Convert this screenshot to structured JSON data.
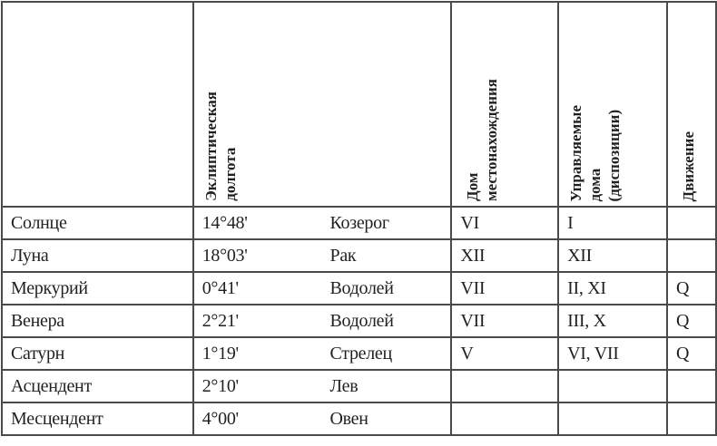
{
  "header": {
    "longitude": [
      "Эклиптическая",
      "долгота"
    ],
    "house": [
      "Дом",
      "местонахождения"
    ],
    "ruled": [
      "Управляемые",
      "дома",
      "(диспозиции)"
    ],
    "motion": [
      "Движение"
    ]
  },
  "rows": [
    {
      "planet": "Солнце",
      "degree": "14°48'",
      "sign": "Козерог",
      "house": "VI",
      "ruled": "I",
      "motion": ""
    },
    {
      "planet": "Луна",
      "degree": "18°03'",
      "sign": "Рак",
      "house": "XII",
      "ruled": "XII",
      "motion": ""
    },
    {
      "planet": "Меркурий",
      "degree": "0°41'",
      "sign": "Водолей",
      "house": "VII",
      "ruled": "II, XI",
      "motion": "Q"
    },
    {
      "planet": "Венера",
      "degree": "2°21'",
      "sign": "Водолей",
      "house": "VII",
      "ruled": "III, X",
      "motion": "Q"
    },
    {
      "planet": "Сатурн",
      "degree": "1°19'",
      "sign": "Стрелец",
      "house": "V",
      "ruled": "VI, VII",
      "motion": "Q"
    },
    {
      "planet": "Асцендент",
      "degree": "2°10'",
      "sign": "Лев",
      "house": "",
      "ruled": "",
      "motion": ""
    },
    {
      "planet": "Месцендент",
      "degree": "4°00'",
      "sign": "Овен",
      "house": "",
      "ruled": "",
      "motion": ""
    }
  ]
}
